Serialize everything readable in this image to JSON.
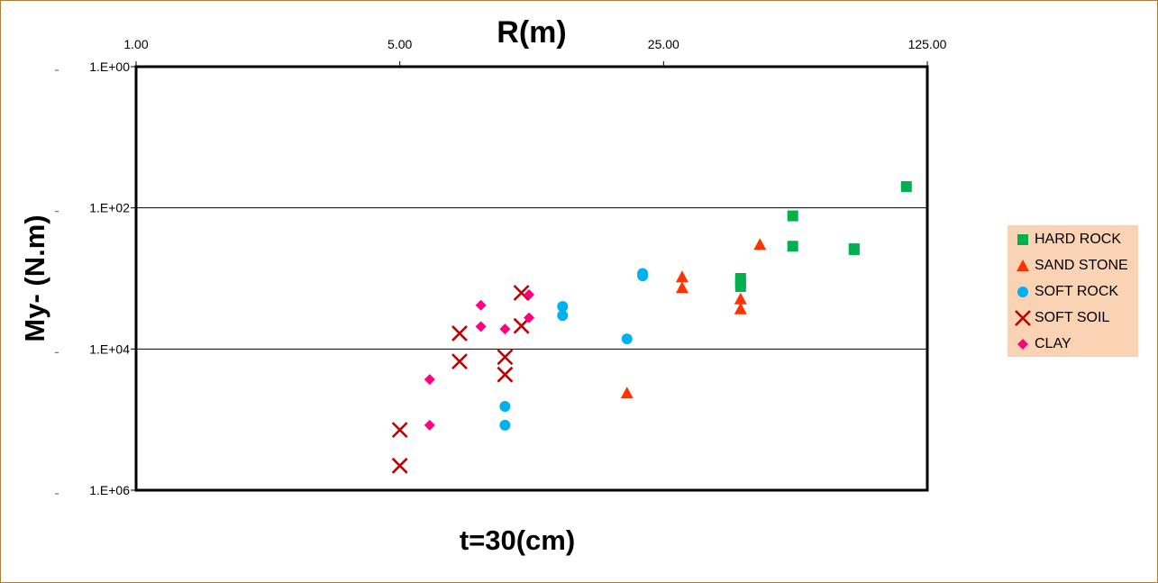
{
  "chart_data": {
    "type": "scatter",
    "title": "R(m)",
    "xlabel": "t=30(cm)",
    "ylabel": "My- (N.m)",
    "x_scale": "log",
    "y_scale": "log",
    "y_reversed": true,
    "x_axis_position": "top",
    "xlim": [
      1,
      125
    ],
    "ylim": [
      1,
      1000000
    ],
    "x_ticks": [
      1,
      5,
      25,
      125
    ],
    "x_tick_labels": [
      "1.00",
      "5.00",
      "25.00",
      "125.00"
    ],
    "y_ticks": [
      1,
      100,
      10000,
      1000000
    ],
    "y_tick_labels": [
      "1.E+00",
      "1.E+02",
      "1.E+04",
      "1.E+06"
    ],
    "grid": "horizontal major",
    "legend_position": "right",
    "series": [
      {
        "name": "HARD ROCK",
        "marker": "square",
        "color": "#00b050",
        "points": [
          [
            110,
            50
          ],
          [
            55,
            130
          ],
          [
            55,
            350
          ],
          [
            80,
            380
          ],
          [
            80,
            390
          ],
          [
            40,
            1000
          ],
          [
            40,
            1150
          ],
          [
            40,
            1300
          ]
        ]
      },
      {
        "name": "SAND STONE",
        "marker": "triangle",
        "color": "#ff3300",
        "points": [
          [
            45,
            330
          ],
          [
            28,
            950
          ],
          [
            28,
            1350
          ],
          [
            40,
            1950
          ],
          [
            40,
            2700
          ],
          [
            20,
            42000
          ]
        ]
      },
      {
        "name": "SOFT ROCK",
        "marker": "circle",
        "color": "#00b0f0",
        "points": [
          [
            22,
            850
          ],
          [
            22,
            920
          ],
          [
            20,
            7200
          ],
          [
            13.5,
            2500
          ],
          [
            13.5,
            3350
          ],
          [
            9.5,
            65000
          ],
          [
            9.5,
            120000
          ]
        ]
      },
      {
        "name": "SOFT SOIL",
        "marker": "x",
        "color": "#c00000",
        "points": [
          [
            10.5,
            1600
          ],
          [
            10.5,
            4700
          ],
          [
            9.5,
            13000
          ],
          [
            9.5,
            23000
          ],
          [
            7.2,
            6000
          ],
          [
            7.2,
            15000
          ],
          [
            5,
            140000
          ],
          [
            5,
            450000
          ]
        ]
      },
      {
        "name": "CLAY",
        "marker": "diamond",
        "color": "#ff0080",
        "points": [
          [
            11,
            1700
          ],
          [
            11,
            3600
          ],
          [
            8.2,
            2400
          ],
          [
            8.2,
            4800
          ],
          [
            9.5,
            5200
          ],
          [
            6,
            27000
          ],
          [
            6,
            120000
          ]
        ]
      }
    ]
  }
}
